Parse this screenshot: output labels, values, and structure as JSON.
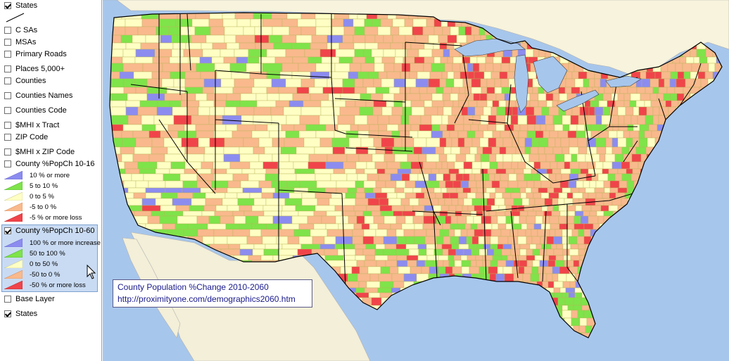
{
  "panel": {
    "layers_top": [
      {
        "label": "States",
        "checked": true
      },
      {
        "label": "C SAs",
        "checked": false
      },
      {
        "label": "MSAs",
        "checked": false
      },
      {
        "label": "Primary Roads",
        "checked": false
      },
      {
        "label": "Places 5,000+",
        "checked": false
      },
      {
        "label": "Counties",
        "checked": false
      },
      {
        "label": "Counties Names",
        "checked": false
      },
      {
        "label": "Counties Code",
        "checked": false
      },
      {
        "label": "$MHI x Tract",
        "checked": false
      },
      {
        "label": "ZIP Code",
        "checked": false
      },
      {
        "label": "$MHI x ZIP Code",
        "checked": false
      },
      {
        "label": "County %PopCh 10-16",
        "checked": false
      }
    ],
    "legend_10_16": [
      {
        "label": "10 % or more",
        "color": "#8c8cf0"
      },
      {
        "label": "5 to 10 %",
        "color": "#7fe34a"
      },
      {
        "label": "0 to 5 %",
        "color": "#ffffc4"
      },
      {
        "label": "-5 to 0 %",
        "color": "#f9b98c"
      },
      {
        "label": "-5 % or more loss",
        "color": "#f0444a"
      }
    ],
    "active_layer": {
      "label": "County %PopCh 10-60",
      "checked": true
    },
    "legend_10_60": [
      {
        "label": "100 % or more increase",
        "color": "#8c8cf0"
      },
      {
        "label": "50 to 100 %",
        "color": "#7fe34a"
      },
      {
        "label": "0 to 50 %",
        "color": "#ffffc4"
      },
      {
        "label": "-50 to 0 %",
        "color": "#f9b98c"
      },
      {
        "label": "-50 % or more loss",
        "color": "#f0444a"
      }
    ],
    "layers_bottom": [
      {
        "label": "Base Layer",
        "checked": false
      },
      {
        "label": "States",
        "checked": true
      }
    ]
  },
  "caption": {
    "title": "County Population %Change 2010-2060",
    "url": "http://proximityone.com/demographics2060.htm"
  },
  "colors": {
    "water": "#a7c6ec",
    "land_outside": "#f7f3dc",
    "mexico_land": "#f3efd8"
  }
}
